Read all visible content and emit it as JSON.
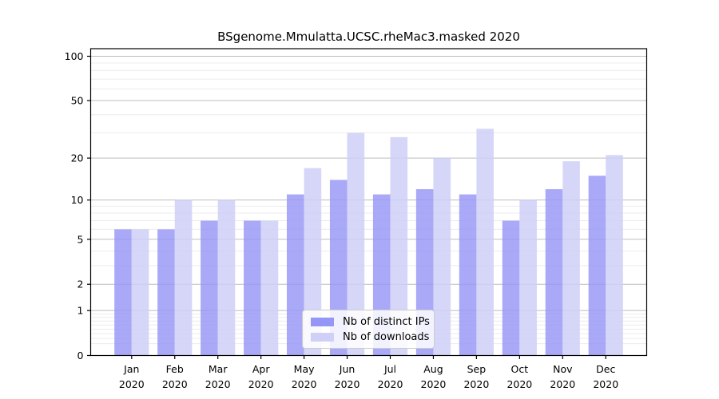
{
  "title": "BSgenome.Mmulatta.UCSC.rheMac3.masked 2020",
  "chart_data": {
    "type": "bar",
    "title": "BSgenome.Mmulatta.UCSC.rheMac3.masked 2020",
    "categories": [
      "Jan",
      "Feb",
      "Mar",
      "Apr",
      "May",
      "Jun",
      "Jul",
      "Aug",
      "Sep",
      "Oct",
      "Nov",
      "Dec"
    ],
    "x_tick_second_line": "2020",
    "series": [
      {
        "name": "Nb of distinct IPs",
        "color": "#9696f7",
        "values": [
          6,
          6,
          7,
          7,
          11,
          14,
          11,
          12,
          11,
          7,
          12,
          15
        ]
      },
      {
        "name": "Nb of downloads",
        "color": "#cfcff8",
        "values": [
          6,
          10,
          10,
          7,
          17,
          30,
          28,
          20,
          32,
          10,
          19,
          21
        ]
      }
    ],
    "xlabel": "",
    "ylabel": "",
    "yscale": "log1p",
    "y_ticks": [
      0,
      1,
      2,
      5,
      10,
      20,
      50,
      100
    ],
    "ylim": [
      0,
      112
    ],
    "grid": true,
    "legend_position": "bottom-center-inside"
  },
  "colors": {
    "distinct_ips_bar": "#9696f7",
    "downloads_bar": "#cfcff8",
    "major_gridline": "#bdbdbd",
    "minor_gridline": "#ececec",
    "axis_frame": "#000000"
  }
}
